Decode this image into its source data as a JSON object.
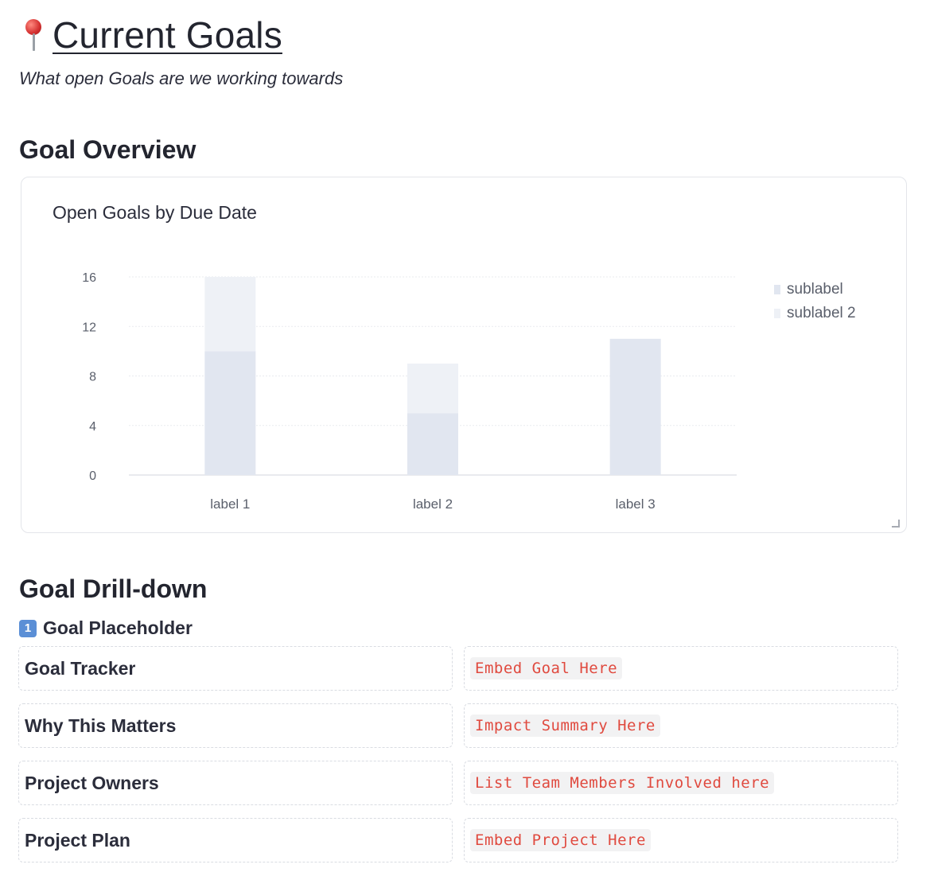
{
  "page": {
    "title": "Current Goals",
    "title_icon": "round-pushpin-icon",
    "subtitle": "What open Goals are we working towards"
  },
  "overview": {
    "heading": "Goal Overview"
  },
  "chart_data": {
    "type": "bar",
    "stacked": true,
    "title": "Open Goals by Due Date",
    "categories": [
      "label 1",
      "label 2",
      "label 3"
    ],
    "series": [
      {
        "name": "sublabel",
        "values": [
          10,
          5,
          11
        ],
        "color": "#e1e6f0"
      },
      {
        "name": "sublabel 2",
        "values": [
          6,
          4,
          0
        ],
        "color": "#eef1f6"
      }
    ],
    "yticks": [
      0,
      4,
      8,
      12,
      16
    ],
    "ylim": [
      0,
      16
    ],
    "grid": true,
    "legend_position": "right"
  },
  "drilldown": {
    "heading": "Goal Drill-down",
    "goal": {
      "icon": "keycap-one-icon",
      "keycap_label": "1",
      "label": "Goal Placeholder"
    },
    "rows": [
      {
        "label": "Goal Tracker",
        "value": "Embed Goal Here"
      },
      {
        "label": "Why This Matters",
        "value": "Impact Summary Here"
      },
      {
        "label": "Project Owners",
        "value": "List Team Members Involved here"
      },
      {
        "label": "Project Plan",
        "value": "Embed Project Here"
      }
    ]
  }
}
